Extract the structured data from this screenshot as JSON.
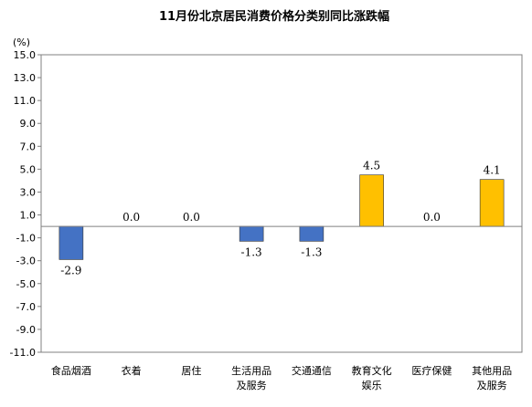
{
  "chart_data": {
    "type": "bar",
    "title": "11月份北京居民消费价格分类别同比涨跌幅",
    "unit_label": "(%)",
    "categories": [
      [
        "食品烟酒"
      ],
      [
        "衣着"
      ],
      [
        "居住"
      ],
      [
        "生活用品",
        "及服务"
      ],
      [
        "交通通信"
      ],
      [
        "教育文化",
        "娱乐"
      ],
      [
        "医疗保健"
      ],
      [
        "其他用品",
        "及服务"
      ]
    ],
    "values": [
      -2.9,
      0.0,
      0.0,
      -1.3,
      -1.3,
      4.5,
      0.0,
      4.1
    ],
    "value_labels": [
      "-2.9",
      "0.0",
      "0.0",
      "-1.3",
      "-1.3",
      "4.5",
      "0.0",
      "4.1"
    ],
    "ylim": [
      -11.0,
      15.0
    ],
    "yticks": [
      "15.0",
      "13.0",
      "11.0",
      "9.0",
      "7.0",
      "5.0",
      "3.0",
      "1.0",
      "-1.0",
      "-3.0",
      "-5.0",
      "-7.0",
      "-9.0",
      "-11.0"
    ],
    "ytick_values": [
      15,
      13,
      11,
      9,
      7,
      5,
      3,
      1,
      -1,
      -3,
      -5,
      -7,
      -9,
      -11
    ],
    "grid": false,
    "legend": false,
    "colors": {
      "negative": "#4472C4",
      "positive": "#FFC000",
      "axis": "#808080"
    }
  }
}
